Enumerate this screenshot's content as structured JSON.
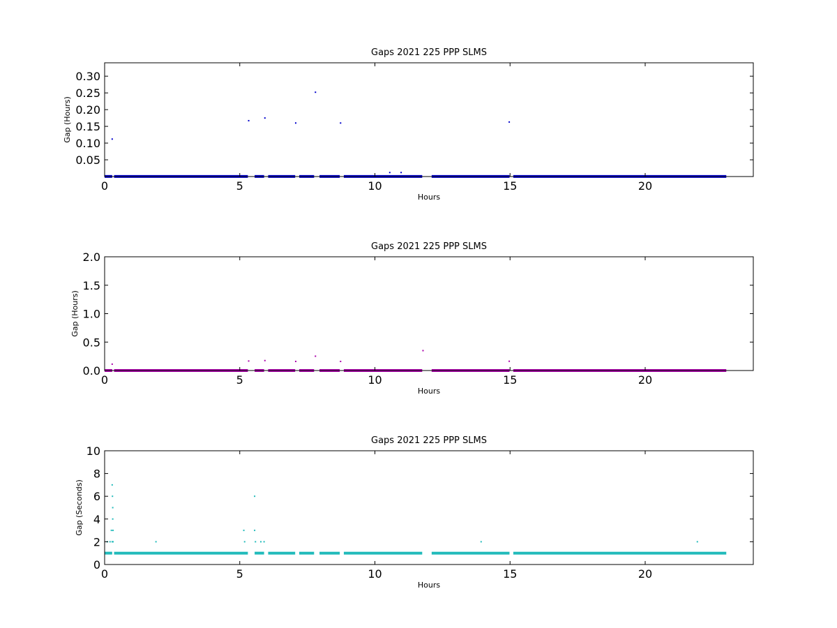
{
  "chart_data": [
    {
      "type": "scatter",
      "title": "Gaps 2021 225 PPP  SLMS",
      "xlabel": "Hours",
      "ylabel": "Gap (Hours)",
      "xlim": [
        0,
        24
      ],
      "ylim": [
        0,
        0.34
      ],
      "xticks": [
        0,
        5,
        10,
        15,
        20
      ],
      "xtick_labels": [
        "0",
        "5",
        "10",
        "15",
        "20"
      ],
      "yticks": [
        0.05,
        0.1,
        0.15,
        0.2,
        0.25,
        0.3
      ],
      "ytick_labels": [
        "0.05",
        "0.10",
        "0.15",
        "0.20",
        "0.25",
        "0.30"
      ],
      "grid": false,
      "color": "#0000cc",
      "baseline": {
        "y": 0.0003,
        "segments": [
          [
            0.0,
            0.28
          ],
          [
            0.35,
            5.3
          ],
          [
            5.55,
            5.9
          ],
          [
            6.05,
            7.05
          ],
          [
            7.2,
            7.75
          ],
          [
            7.95,
            8.7
          ],
          [
            8.85,
            11.75
          ],
          [
            12.1,
            14.98
          ],
          [
            15.12,
            23.0
          ]
        ]
      },
      "points": [
        {
          "x": 0.28,
          "y": 0.112
        },
        {
          "x": 5.33,
          "y": 0.167
        },
        {
          "x": 5.93,
          "y": 0.175
        },
        {
          "x": 7.07,
          "y": 0.16
        },
        {
          "x": 7.8,
          "y": 0.252
        },
        {
          "x": 8.73,
          "y": 0.16
        },
        {
          "x": 10.55,
          "y": 0.012
        },
        {
          "x": 10.97,
          "y": 0.012
        },
        {
          "x": 14.97,
          "y": 0.163
        }
      ]
    },
    {
      "type": "scatter",
      "title": "Gaps 2021 225 PPP  SLMS",
      "xlabel": "Hours",
      "ylabel": "Gap (Hours)",
      "xlim": [
        0,
        24
      ],
      "ylim": [
        0,
        2.0
      ],
      "xticks": [
        0,
        5,
        10,
        15,
        20
      ],
      "xtick_labels": [
        "0",
        "5",
        "10",
        "15",
        "20"
      ],
      "yticks": [
        0.0,
        0.5,
        1.0,
        1.5,
        2.0
      ],
      "ytick_labels": [
        "0.0",
        "0.5",
        "1.0",
        "1.5",
        "2.0"
      ],
      "grid": false,
      "color": "#aa00aa",
      "baseline": {
        "y": 0.0003,
        "segments": [
          [
            0.0,
            0.28
          ],
          [
            0.35,
            5.3
          ],
          [
            5.55,
            5.9
          ],
          [
            6.05,
            7.05
          ],
          [
            7.2,
            7.75
          ],
          [
            7.95,
            8.7
          ],
          [
            8.85,
            11.75
          ],
          [
            12.1,
            14.98
          ],
          [
            15.12,
            23.0
          ]
        ]
      },
      "points": [
        {
          "x": 0.28,
          "y": 0.112
        },
        {
          "x": 5.33,
          "y": 0.167
        },
        {
          "x": 5.93,
          "y": 0.175
        },
        {
          "x": 7.07,
          "y": 0.16
        },
        {
          "x": 7.8,
          "y": 0.252
        },
        {
          "x": 8.73,
          "y": 0.16
        },
        {
          "x": 11.78,
          "y": 0.35
        },
        {
          "x": 14.97,
          "y": 0.163
        }
      ]
    },
    {
      "type": "scatter",
      "title": "Gaps 2021 225 PPP  SLMS",
      "xlabel": "Hours",
      "ylabel": "Gap (Seconds)",
      "xlim": [
        0,
        24
      ],
      "ylim": [
        0,
        10
      ],
      "xticks": [
        0,
        5,
        10,
        15,
        20
      ],
      "xtick_labels": [
        "0",
        "5",
        "10",
        "15",
        "20"
      ],
      "yticks": [
        0,
        2,
        4,
        6,
        8,
        10
      ],
      "ytick_labels": [
        "0",
        "2",
        "4",
        "6",
        "8",
        "10"
      ],
      "grid": false,
      "color": "#22bbbb",
      "baseline": {
        "y": 1,
        "segments": [
          [
            0.0,
            0.28
          ],
          [
            0.35,
            5.3
          ],
          [
            5.55,
            5.9
          ],
          [
            6.05,
            7.05
          ],
          [
            7.2,
            7.75
          ],
          [
            7.95,
            8.7
          ],
          [
            8.85,
            11.75
          ],
          [
            12.1,
            14.98
          ],
          [
            15.12,
            23.0
          ]
        ]
      },
      "points": [
        {
          "x": 0.1,
          "y": 2
        },
        {
          "x": 0.2,
          "y": 2
        },
        {
          "x": 0.25,
          "y": 3
        },
        {
          "x": 0.28,
          "y": 2
        },
        {
          "x": 0.28,
          "y": 7
        },
        {
          "x": 0.29,
          "y": 6
        },
        {
          "x": 0.3,
          "y": 5
        },
        {
          "x": 0.3,
          "y": 4
        },
        {
          "x": 0.31,
          "y": 3
        },
        {
          "x": 0.31,
          "y": 2
        },
        {
          "x": 1.9,
          "y": 2
        },
        {
          "x": 5.15,
          "y": 3
        },
        {
          "x": 5.18,
          "y": 2
        },
        {
          "x": 5.55,
          "y": 6
        },
        {
          "x": 5.55,
          "y": 3
        },
        {
          "x": 5.58,
          "y": 2
        },
        {
          "x": 5.78,
          "y": 2
        },
        {
          "x": 5.9,
          "y": 2
        },
        {
          "x": 13.93,
          "y": 2
        },
        {
          "x": 21.93,
          "y": 2
        }
      ]
    }
  ]
}
